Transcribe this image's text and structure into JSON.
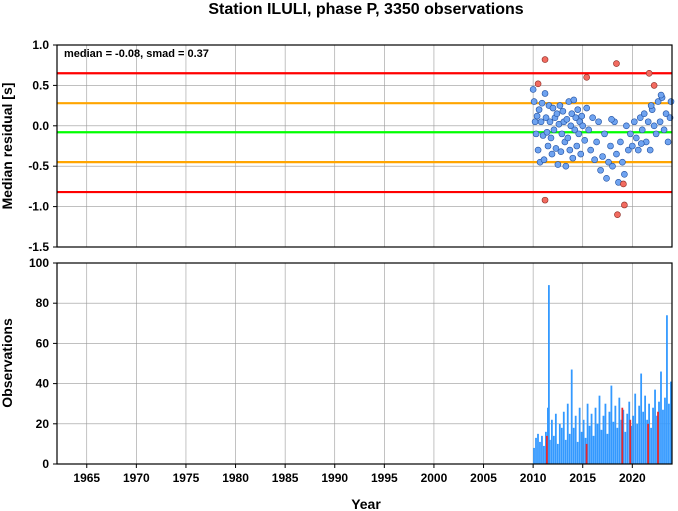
{
  "title": "Station ILULI, phase P, 3350 observations",
  "chart_data": [
    {
      "type": "scatter",
      "ylabel": "Median residual [s]",
      "annotation": "median = -0.08, smad = 0.37",
      "xlim": [
        1962,
        2024
      ],
      "ylim": [
        -1.5,
        1.0
      ],
      "yticks": [
        "1.0",
        "0.5",
        "0.0",
        "-0.5",
        "-1.0",
        "-1.5"
      ],
      "reference_lines": [
        {
          "y": 0.65,
          "color": "#ff0000"
        },
        {
          "y": 0.28,
          "color": "#ffa500"
        },
        {
          "y": -0.08,
          "color": "#00ff00"
        },
        {
          "y": -0.45,
          "color": "#ffa500"
        },
        {
          "y": -0.82,
          "color": "#ff0000"
        }
      ],
      "colors": {
        "normal": "#6fa3f0",
        "outlier": "#f26b60"
      },
      "points_normal": [
        [
          2010.0,
          0.45
        ],
        [
          2010.1,
          0.3
        ],
        [
          2010.2,
          0.05
        ],
        [
          2010.3,
          -0.1
        ],
        [
          2010.4,
          0.12
        ],
        [
          2010.5,
          -0.3
        ],
        [
          2010.6,
          0.2
        ],
        [
          2010.7,
          -0.45
        ],
        [
          2010.8,
          0.05
        ],
        [
          2010.9,
          0.28
        ],
        [
          2011.0,
          -0.12
        ],
        [
          2011.1,
          -0.42
        ],
        [
          2011.2,
          0.4
        ],
        [
          2011.3,
          0.1
        ],
        [
          2011.4,
          -0.08
        ],
        [
          2011.5,
          -0.25
        ],
        [
          2011.6,
          0.25
        ],
        [
          2011.7,
          0.05
        ],
        [
          2011.8,
          -0.15
        ],
        [
          2011.9,
          -0.35
        ],
        [
          2012.0,
          0.22
        ],
        [
          2012.1,
          -0.05
        ],
        [
          2012.2,
          0.1
        ],
        [
          2012.3,
          -0.28
        ],
        [
          2012.4,
          0.15
        ],
        [
          2012.5,
          -0.48
        ],
        [
          2012.6,
          0.02
        ],
        [
          2012.7,
          0.25
        ],
        [
          2012.8,
          -0.32
        ],
        [
          2012.9,
          -0.1
        ],
        [
          2013.0,
          0.18
        ],
        [
          2013.1,
          0.05
        ],
        [
          2013.2,
          -0.2
        ],
        [
          2013.3,
          -0.5
        ],
        [
          2013.4,
          0.08
        ],
        [
          2013.5,
          -0.15
        ],
        [
          2013.6,
          0.3
        ],
        [
          2013.7,
          -0.3
        ],
        [
          2013.8,
          0.0
        ],
        [
          2013.9,
          0.15
        ],
        [
          2014.0,
          -0.4
        ],
        [
          2014.1,
          0.32
        ],
        [
          2014.2,
          -0.05
        ],
        [
          2014.3,
          0.1
        ],
        [
          2014.4,
          -0.25
        ],
        [
          2014.5,
          0.2
        ],
        [
          2014.6,
          -0.1
        ],
        [
          2014.7,
          0.05
        ],
        [
          2014.8,
          -0.35
        ],
        [
          2014.9,
          0.12
        ],
        [
          2015.0,
          0.0
        ],
        [
          2015.2,
          -0.18
        ],
        [
          2015.4,
          0.22
        ],
        [
          2015.6,
          -0.05
        ],
        [
          2015.8,
          -0.3
        ],
        [
          2016.0,
          0.1
        ],
        [
          2016.2,
          -0.42
        ],
        [
          2016.4,
          -0.2
        ],
        [
          2016.6,
          0.05
        ],
        [
          2016.8,
          -0.55
        ],
        [
          2017.0,
          -0.38
        ],
        [
          2017.2,
          -0.1
        ],
        [
          2017.4,
          -0.65
        ],
        [
          2017.6,
          -0.45
        ],
        [
          2017.8,
          -0.25
        ],
        [
          2018.0,
          -0.5
        ],
        [
          2018.2,
          0.05
        ],
        [
          2018.4,
          -0.35
        ],
        [
          2018.6,
          -0.7
        ],
        [
          2018.8,
          -0.2
        ],
        [
          2019.0,
          -0.45
        ],
        [
          2019.2,
          -0.6
        ],
        [
          2019.4,
          0.0
        ],
        [
          2019.6,
          -0.3
        ],
        [
          2019.8,
          -0.1
        ],
        [
          2020.0,
          -0.25
        ],
        [
          2020.2,
          0.05
        ],
        [
          2020.4,
          -0.15
        ],
        [
          2020.6,
          -0.3
        ],
        [
          2020.8,
          0.1
        ],
        [
          2021.0,
          -0.05
        ],
        [
          2021.2,
          0.15
        ],
        [
          2021.4,
          -0.2
        ],
        [
          2021.6,
          0.05
        ],
        [
          2021.8,
          -0.3
        ],
        [
          2022.0,
          0.2
        ],
        [
          2022.2,
          0.0
        ],
        [
          2022.4,
          -0.1
        ],
        [
          2022.6,
          0.3
        ],
        [
          2022.8,
          0.05
        ],
        [
          2023.0,
          0.35
        ],
        [
          2023.2,
          -0.05
        ],
        [
          2023.4,
          0.15
        ],
        [
          2023.6,
          -0.2
        ],
        [
          2023.8,
          0.1
        ],
        [
          2023.9,
          0.3
        ],
        [
          2022.9,
          0.38
        ],
        [
          2021.9,
          0.25
        ],
        [
          2020.9,
          -0.22
        ],
        [
          2017.9,
          0.08
        ]
      ],
      "points_outlier": [
        [
          2010.5,
          0.52
        ],
        [
          2011.2,
          0.82
        ],
        [
          2011.2,
          -0.92
        ],
        [
          2015.4,
          0.6
        ],
        [
          2018.4,
          0.77
        ],
        [
          2018.5,
          -1.1
        ],
        [
          2019.1,
          -0.72
        ],
        [
          2019.2,
          -0.98
        ],
        [
          2021.7,
          0.65
        ],
        [
          2022.2,
          0.5
        ]
      ]
    },
    {
      "type": "bar",
      "ylabel": "Observations",
      "xlabel": "Year",
      "xlim": [
        1962,
        2024
      ],
      "ylim": [
        0,
        100
      ],
      "xticks": [
        "1965",
        "1970",
        "1975",
        "1980",
        "1985",
        "1990",
        "1995",
        "2000",
        "2005",
        "2010",
        "2015",
        "2020"
      ],
      "yticks": [
        "0",
        "20",
        "40",
        "60",
        "80",
        "100"
      ],
      "colors": {
        "normal": "#3399ff",
        "outlier": "#e8282d"
      },
      "bars": [
        [
          2010.0,
          8
        ],
        [
          2010.2,
          13
        ],
        [
          2010.4,
          15
        ],
        [
          2010.6,
          11
        ],
        [
          2010.8,
          14
        ],
        [
          2011.0,
          9
        ],
        [
          2011.2,
          16
        ],
        [
          2011.4,
          28
        ],
        [
          2011.5,
          89
        ],
        [
          2011.6,
          12
        ],
        [
          2011.8,
          22
        ],
        [
          2012.0,
          14
        ],
        [
          2012.2,
          25
        ],
        [
          2012.4,
          10
        ],
        [
          2012.6,
          20
        ],
        [
          2012.8,
          18
        ],
        [
          2013.0,
          26
        ],
        [
          2013.2,
          12
        ],
        [
          2013.4,
          30
        ],
        [
          2013.6,
          15
        ],
        [
          2013.8,
          47
        ],
        [
          2014.0,
          18
        ],
        [
          2014.2,
          24
        ],
        [
          2014.4,
          11
        ],
        [
          2014.6,
          28
        ],
        [
          2014.8,
          16
        ],
        [
          2015.0,
          22
        ],
        [
          2015.2,
          13
        ],
        [
          2015.4,
          30
        ],
        [
          2015.6,
          19
        ],
        [
          2015.8,
          25
        ],
        [
          2016.0,
          14
        ],
        [
          2016.2,
          28
        ],
        [
          2016.4,
          20
        ],
        [
          2016.6,
          34
        ],
        [
          2016.8,
          17
        ],
        [
          2017.0,
          24
        ],
        [
          2017.2,
          30
        ],
        [
          2017.4,
          15
        ],
        [
          2017.6,
          26
        ],
        [
          2017.8,
          39
        ],
        [
          2018.0,
          21
        ],
        [
          2018.2,
          29
        ],
        [
          2018.4,
          18
        ],
        [
          2018.6,
          33
        ],
        [
          2018.8,
          22
        ],
        [
          2019.0,
          27
        ],
        [
          2019.2,
          16
        ],
        [
          2019.4,
          25
        ],
        [
          2019.6,
          31
        ],
        [
          2019.8,
          19
        ],
        [
          2020.0,
          24
        ],
        [
          2020.2,
          35
        ],
        [
          2020.4,
          20
        ],
        [
          2020.6,
          29
        ],
        [
          2020.8,
          45
        ],
        [
          2021.0,
          26
        ],
        [
          2021.2,
          34
        ],
        [
          2021.4,
          22
        ],
        [
          2021.6,
          30
        ],
        [
          2021.8,
          18
        ],
        [
          2022.0,
          28
        ],
        [
          2022.2,
          37
        ],
        [
          2022.4,
          24
        ],
        [
          2022.6,
          31
        ],
        [
          2022.8,
          46
        ],
        [
          2023.0,
          27
        ],
        [
          2023.2,
          33
        ],
        [
          2023.4,
          74
        ],
        [
          2023.6,
          30
        ],
        [
          2023.8,
          41
        ]
      ],
      "bars_outlier": [
        [
          2011.3,
          14
        ],
        [
          2015.3,
          10
        ],
        [
          2018.9,
          28
        ],
        [
          2019.7,
          22
        ],
        [
          2021.5,
          20
        ],
        [
          2022.5,
          26
        ]
      ]
    }
  ]
}
